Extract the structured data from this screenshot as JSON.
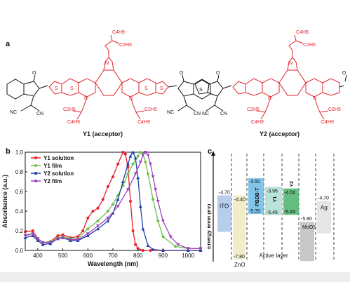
{
  "panels": {
    "a": "a",
    "b": "b",
    "c": "c"
  },
  "structures": {
    "y1_label": "Y1 (acceptor)",
    "y2_label": "Y2 (acceptor)",
    "top_chain_y1": [
      "C4H9",
      "C2H5"
    ],
    "top_chain_y2": [
      "C4H9",
      "C2H5"
    ],
    "side_chains": [
      "C2H5",
      "C4H9",
      "C4H9",
      "C2H5"
    ],
    "nitrile": "NC",
    "nitrile_r": "CN",
    "atoms": {
      "N": "N",
      "S": "S",
      "O": "O"
    }
  },
  "colors": {
    "y1_solution": "#e8202a",
    "y1_film": "#6cc04a",
    "y2_solution": "#1f3fa8",
    "y2_film": "#a040c0",
    "core_red": "#e8202a",
    "ito": "#a9c6e8",
    "zno": "#f3ecc9",
    "pbdbt": "#55b0e0",
    "y1_col": "#b9e3d8",
    "y2_col": "#49b36a",
    "moo3": "#b9b9b9",
    "ag": "#e5e5e5"
  },
  "chart_data": [
    {
      "type": "line",
      "title": "",
      "xlabel": "Wavelength (nm)",
      "ylabel": "Absorbance (a.u.)",
      "xlim": [
        350,
        1050
      ],
      "ylim": [
        0,
        1.0
      ],
      "xticks": [
        400,
        500,
        600,
        700,
        800,
        900,
        1000
      ],
      "yticks": [
        0.0,
        0.2,
        0.4,
        0.6,
        0.8,
        1.0
      ],
      "legend": "top-left",
      "series": [
        {
          "name": "Y1 solution",
          "x": [
            350,
            380,
            400,
            420,
            450,
            480,
            500,
            530,
            560,
            580,
            600,
            620,
            640,
            660,
            680,
            700,
            720,
            740,
            750,
            760,
            770,
            780,
            790,
            800,
            820,
            850,
            900,
            1000,
            1050
          ],
          "y": [
            0.19,
            0.2,
            0.12,
            0.08,
            0.09,
            0.15,
            0.16,
            0.13,
            0.14,
            0.2,
            0.33,
            0.4,
            0.43,
            0.52,
            0.65,
            0.75,
            0.88,
            1.0,
            0.98,
            0.85,
            0.5,
            0.2,
            0.06,
            0.02,
            0.0,
            0.0,
            0.0,
            0.0,
            0.0
          ]
        },
        {
          "name": "Y1 film",
          "x": [
            350,
            380,
            400,
            420,
            450,
            480,
            500,
            530,
            560,
            600,
            640,
            680,
            700,
            720,
            740,
            760,
            780,
            800,
            810,
            820,
            830,
            840,
            860,
            880,
            900,
            950,
            1000,
            1050
          ],
          "y": [
            0.16,
            0.17,
            0.11,
            0.08,
            0.09,
            0.13,
            0.14,
            0.12,
            0.12,
            0.22,
            0.3,
            0.4,
            0.47,
            0.56,
            0.66,
            0.78,
            0.88,
            0.96,
            1.0,
            0.98,
            0.9,
            0.78,
            0.52,
            0.3,
            0.14,
            0.04,
            0.02,
            0.02
          ]
        },
        {
          "name": "Y2 solution",
          "x": [
            350,
            380,
            400,
            420,
            450,
            480,
            500,
            530,
            560,
            600,
            640,
            680,
            700,
            720,
            740,
            760,
            770,
            780,
            790,
            800,
            810,
            820,
            840,
            860,
            900,
            1000,
            1050
          ],
          "y": [
            0.13,
            0.15,
            0.1,
            0.06,
            0.07,
            0.12,
            0.13,
            0.1,
            0.1,
            0.15,
            0.22,
            0.3,
            0.38,
            0.52,
            0.7,
            0.88,
            0.96,
            1.0,
            0.94,
            0.74,
            0.45,
            0.22,
            0.05,
            0.01,
            0.0,
            0.0,
            0.0
          ]
        },
        {
          "name": "Y2 film",
          "x": [
            350,
            380,
            400,
            420,
            450,
            480,
            500,
            530,
            560,
            600,
            640,
            680,
            720,
            760,
            790,
            810,
            820,
            830,
            840,
            850,
            860,
            870,
            880,
            900,
            930,
            960,
            1000,
            1050
          ],
          "y": [
            0.15,
            0.17,
            0.12,
            0.08,
            0.08,
            0.12,
            0.13,
            0.11,
            0.11,
            0.17,
            0.25,
            0.33,
            0.45,
            0.62,
            0.78,
            0.9,
            0.97,
            1.0,
            0.97,
            0.88,
            0.75,
            0.62,
            0.5,
            0.3,
            0.14,
            0.06,
            0.02,
            0.02
          ]
        }
      ]
    },
    {
      "type": "diagram",
      "ylabel": "Energy level (eV)",
      "layers": [
        {
          "name": "ITO",
          "lower": "-4.70"
        },
        {
          "name": "ZnO",
          "upper": "-4.40",
          "lower": "-7.80"
        },
        {
          "name": "PBDB-T",
          "upper": "-3.50",
          "lower": "-5.39"
        },
        {
          "name": "Y1",
          "upper": "-3.95",
          "lower": "-5.45"
        },
        {
          "name": "Y2",
          "upper": "-4.04",
          "lower": "-5.43"
        },
        {
          "name": "MoO3",
          "lower": "-5.80"
        },
        {
          "name": "Ag",
          "lower": "-4.70"
        }
      ],
      "active_layer_label": "Active layer"
    }
  ]
}
